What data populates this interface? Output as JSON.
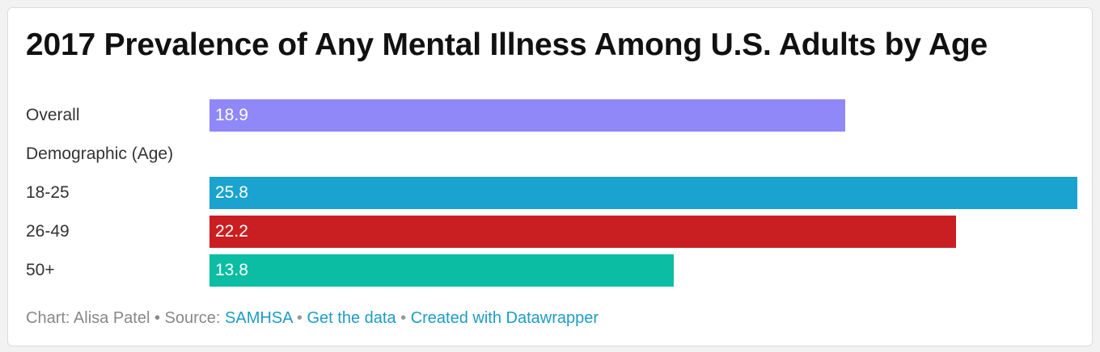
{
  "chart_data": {
    "type": "bar",
    "orientation": "horizontal",
    "title": "2017 Prevalence of Any Mental Illness Among U.S. Adults by Age",
    "rows": [
      {
        "label": "Overall",
        "value": 18.9,
        "value_label": "18.9",
        "color": "#9088f9"
      },
      {
        "label": "Demographic (Age)",
        "value": null,
        "value_label": "",
        "color": ""
      },
      {
        "label": "18-25",
        "value": 25.8,
        "value_label": "25.8",
        "color": "#1ba3cf"
      },
      {
        "label": "26-49",
        "value": 22.2,
        "value_label": "22.2",
        "color": "#c91f22"
      },
      {
        "label": "50+",
        "value": 13.8,
        "value_label": "13.8",
        "color": "#0bbda2"
      }
    ],
    "xlim": [
      0,
      25.8
    ],
    "grid": false,
    "legend": "none"
  },
  "footer": {
    "prefix": "Chart: Alisa Patel • Source: ",
    "source_link": "SAMHSA",
    "sep1": " • ",
    "data_link": "Get the data",
    "sep2": " • ",
    "credit_link": "Created with Datawrapper"
  }
}
